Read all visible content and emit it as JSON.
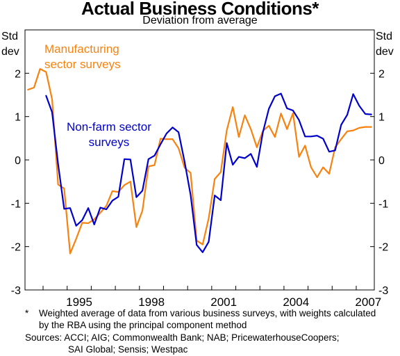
{
  "title": "Actual Business Conditions*",
  "subtitle": "Deviation from average",
  "unit_left": [
    "Std",
    "dev"
  ],
  "unit_right": [
    "Std",
    "dev"
  ],
  "series_labels": {
    "manufacturing": [
      "Manufacturing",
      "sector surveys"
    ],
    "nonfarm": [
      "Non-farm sector",
      "surveys"
    ]
  },
  "footnote": {
    "marker": "*",
    "text": "Weighted average of data from various business surveys, with weights calculated by the RBA using the principal component method"
  },
  "sources": {
    "line1": "Sources: ACCI; AIG; Commonwealth Bank; NAB; PricewaterhouseCoopers;",
    "line2": "SAI Global; Sensis; Westpac"
  },
  "colors": {
    "manufacturing": "#f7820f",
    "nonfarm": "#0000cc"
  },
  "chart_data": {
    "type": "line",
    "title": "Actual Business Conditions*",
    "subtitle": "Deviation from average",
    "ylabel": "Std dev",
    "ylim": [
      -3,
      3
    ],
    "yticks": [
      2,
      1,
      0,
      -1,
      -2,
      -3
    ],
    "ytick_labels": [
      "2",
      "1",
      "0",
      "-1",
      "-2",
      "-3"
    ],
    "xlim": [
      1993.25,
      2007.75
    ],
    "xticks": [
      1995,
      1998,
      2001,
      2004,
      2007
    ],
    "xtick_labels": [
      "1995",
      "1998",
      "2001",
      "2004",
      "2007"
    ],
    "grid": false,
    "series": [
      {
        "name": "Manufacturing sector surveys",
        "color": "#f7820f",
        "x": [
          1993.375,
          1993.625,
          1993.875,
          1994.125,
          1994.375,
          1994.625,
          1994.875,
          1995.125,
          1995.375,
          1995.625,
          1995.875,
          1996.125,
          1996.375,
          1996.625,
          1996.875,
          1997.125,
          1997.375,
          1997.625,
          1997.875,
          1998.125,
          1998.375,
          1998.625,
          1998.875,
          1999.125,
          1999.375,
          1999.625,
          1999.875,
          2000.125,
          2000.375,
          2000.625,
          2000.875,
          2001.125,
          2001.375,
          2001.625,
          2001.875,
          2002.125,
          2002.375,
          2002.625,
          2002.875,
          2003.125,
          2003.375,
          2003.625,
          2003.875,
          2004.125,
          2004.375,
          2004.625,
          2004.875,
          2005.125,
          2005.375,
          2005.625,
          2005.875,
          2006.125,
          2006.375,
          2006.625,
          2006.875,
          2007.125,
          2007.375,
          2007.625
        ],
        "values": [
          1.62,
          1.67,
          2.1,
          2.03,
          1.4,
          -0.57,
          -0.66,
          -2.16,
          -1.82,
          -1.45,
          -1.46,
          -1.37,
          -1.22,
          -1.06,
          -0.72,
          -0.74,
          -0.58,
          -0.5,
          -1.55,
          -1.17,
          -0.15,
          -0.12,
          0.49,
          0.48,
          0.48,
          0.27,
          -0.18,
          -0.3,
          -1.86,
          -1.95,
          -1.35,
          -0.44,
          -0.28,
          0.68,
          1.22,
          0.53,
          1.03,
          0.71,
          0.29,
          0.67,
          0.79,
          0.53,
          1.07,
          0.71,
          1.08,
          0.07,
          0.33,
          -0.17,
          -0.4,
          -0.17,
          -0.32,
          0.29,
          0.48,
          0.66,
          0.68,
          0.74,
          0.76,
          0.76
        ]
      },
      {
        "name": "Non-farm sector surveys",
        "color": "#0000cc",
        "x": [
          1994.125,
          1994.375,
          1994.625,
          1994.875,
          1995.125,
          1995.375,
          1995.625,
          1995.875,
          1996.125,
          1996.375,
          1996.625,
          1996.875,
          1997.125,
          1997.375,
          1997.625,
          1997.875,
          1998.125,
          1998.375,
          1998.625,
          1998.875,
          1999.125,
          1999.375,
          1999.625,
          1999.875,
          2000.125,
          2000.375,
          2000.625,
          2000.875,
          2001.125,
          2001.375,
          2001.625,
          2001.875,
          2002.125,
          2002.375,
          2002.625,
          2002.875,
          2003.125,
          2003.375,
          2003.625,
          2003.875,
          2004.125,
          2004.375,
          2004.625,
          2004.875,
          2005.125,
          2005.375,
          2005.625,
          2005.875,
          2006.125,
          2006.375,
          2006.625,
          2006.875,
          2007.125,
          2007.375,
          2007.625
        ],
        "values": [
          1.48,
          1.1,
          -0.1,
          -1.13,
          -1.11,
          -1.52,
          -1.39,
          -1.11,
          -1.49,
          -1.1,
          -1.14,
          -0.94,
          -0.85,
          0.02,
          0.01,
          -0.86,
          -0.71,
          0.02,
          0.1,
          0.36,
          0.61,
          0.75,
          0.64,
          -0.04,
          -0.81,
          -1.96,
          -2.13,
          -1.89,
          -0.82,
          -0.93,
          0.39,
          -0.11,
          0.07,
          0.04,
          0.14,
          -0.16,
          0.64,
          1.18,
          1.47,
          1.53,
          1.19,
          1.14,
          0.92,
          0.54,
          0.54,
          0.56,
          0.49,
          0.19,
          0.22,
          0.81,
          1.04,
          1.52,
          1.25,
          1.06,
          1.05
        ]
      }
    ],
    "annotations": [
      "Manufacturing sector surveys",
      "Non-farm sector surveys"
    ]
  }
}
